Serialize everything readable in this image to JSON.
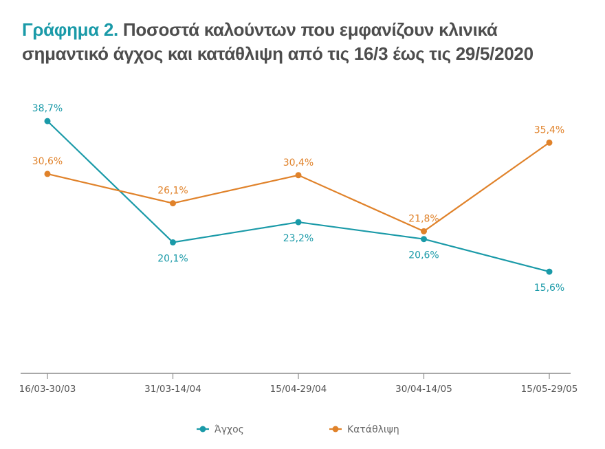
{
  "title": {
    "lead": "Γράφημα 2.",
    "rest_line1": "Ποσοστά καλούντων που εμφανίζουν κλινικά",
    "rest_line2": "σημαντικό άγχος και κατάθλιψη από τις 16/3 έως τις 29/5/2020"
  },
  "chart_data": {
    "type": "line",
    "categories": [
      "16/03-30/03",
      "31/03-14/04",
      "15/04-29/04",
      "30/04-14/05",
      "15/05-29/05"
    ],
    "ylim": [
      0,
      40
    ],
    "grid": false,
    "legend_placement": "bottom",
    "series": [
      {
        "name": "Άγχος",
        "color": "#1a9aa8",
        "values": [
          38.7,
          20.1,
          23.2,
          20.6,
          15.6
        ],
        "labels": [
          "38,7%",
          "20,1%",
          "23,2%",
          "20,6%",
          "15,6%"
        ]
      },
      {
        "name": "Κατάθλιψη",
        "color": "#e0822a",
        "values": [
          30.6,
          26.1,
          30.4,
          21.8,
          35.4
        ],
        "labels": [
          "30,6%",
          "26,1%",
          "30,4%",
          "21,8%",
          "35,4%"
        ]
      }
    ]
  }
}
